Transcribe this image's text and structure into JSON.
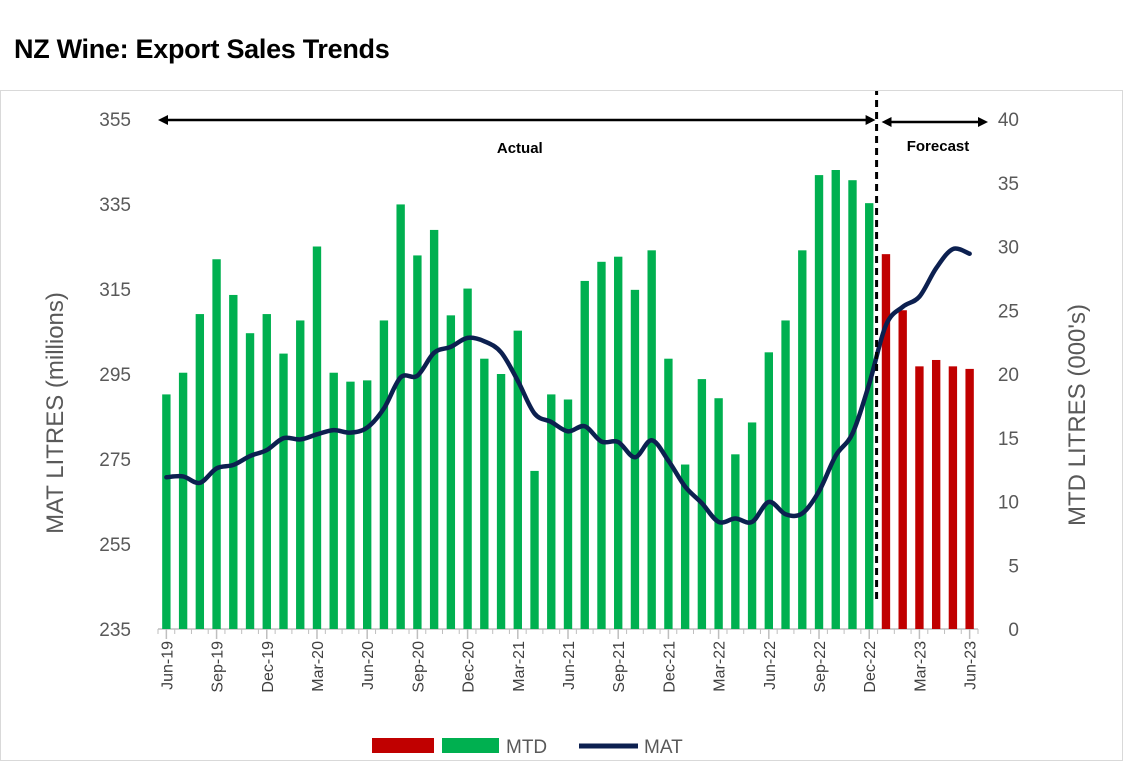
{
  "title": "NZ Wine: Export Sales Trends",
  "chart_data": {
    "type": "bar",
    "title": "NZ Wine: Export Sales Trends",
    "x": [
      "Jun-19",
      "Jul-19",
      "Aug-19",
      "Sep-19",
      "Oct-19",
      "Nov-19",
      "Dec-19",
      "Jan-20",
      "Feb-20",
      "Mar-20",
      "Apr-20",
      "May-20",
      "Jun-20",
      "Jul-20",
      "Aug-20",
      "Sep-20",
      "Oct-20",
      "Nov-20",
      "Dec-20",
      "Jan-21",
      "Feb-21",
      "Mar-21",
      "Apr-21",
      "May-21",
      "Jun-21",
      "Jul-21",
      "Aug-21",
      "Sep-21",
      "Oct-21",
      "Nov-21",
      "Dec-21",
      "Jan-22",
      "Feb-22",
      "Mar-22",
      "Apr-22",
      "May-22",
      "Jun-22",
      "Jul-22",
      "Aug-22",
      "Sep-22",
      "Oct-22",
      "Nov-22",
      "Dec-22",
      "Jan-23",
      "Feb-23",
      "Mar-23",
      "Apr-23",
      "May-23",
      "Jun-23"
    ],
    "x_tick_labels": [
      "Jun-19",
      "Sep-19",
      "Dec-19",
      "Mar-20",
      "Jun-20",
      "Sep-20",
      "Dec-20",
      "Mar-21",
      "Jun-21",
      "Sep-21",
      "Dec-21",
      "Mar-22",
      "Jun-22",
      "Sep-22",
      "Dec-22",
      "Mar-23",
      "Jun-23"
    ],
    "ylabel_left": "MAT LITRES (millions)",
    "ylabel_right": "MTD LITRES (000's)",
    "ylim_left": [
      235,
      355
    ],
    "ylim_right": [
      0,
      40
    ],
    "yticks_left": [
      235,
      255,
      275,
      295,
      315,
      335,
      355
    ],
    "yticks_right": [
      0,
      5,
      10,
      15,
      20,
      25,
      30,
      35,
      40
    ],
    "series": [
      {
        "name": "MTD",
        "type": "bar",
        "axis": "right",
        "colors": {
          "actual": "#00b050",
          "forecast": "#c00000"
        },
        "forecast_from_index": 43,
        "values": [
          18.4,
          20.1,
          24.7,
          29.0,
          26.2,
          23.2,
          24.7,
          21.6,
          24.2,
          30.0,
          20.1,
          19.4,
          19.5,
          24.2,
          33.3,
          29.3,
          31.3,
          24.6,
          26.7,
          21.2,
          20.0,
          23.4,
          12.4,
          18.4,
          18.0,
          27.3,
          28.8,
          29.2,
          26.6,
          29.7,
          21.2,
          12.9,
          19.6,
          18.1,
          13.7,
          16.2,
          21.7,
          24.2,
          29.7,
          35.6,
          36.0,
          35.2,
          33.4,
          29.4,
          25.0,
          20.6,
          21.1,
          20.6,
          20.4
        ]
      },
      {
        "name": "MAT",
        "type": "line",
        "axis": "left",
        "color": "#0c2050",
        "values": [
          270.7,
          270.9,
          269.4,
          272.8,
          273.6,
          275.7,
          277.1,
          279.9,
          279.6,
          280.8,
          281.8,
          281.2,
          282.4,
          286.9,
          294.2,
          294.6,
          300.0,
          301.4,
          303.5,
          302.7,
          300.1,
          293.4,
          285.7,
          283.7,
          281.5,
          282.7,
          279.1,
          279.0,
          275.4,
          279.4,
          274.6,
          268.5,
          264.6,
          260.2,
          261.0,
          260.2,
          264.9,
          262.0,
          262.2,
          267.4,
          275.8,
          281.0,
          292.7,
          306.5,
          310.8,
          313.2,
          319.9,
          324.4,
          323.3
        ]
      }
    ],
    "annotations": [
      {
        "text": "Actual"
      },
      {
        "text": "Forecast"
      }
    ],
    "legend": {
      "placement": "bottom",
      "entries": [
        "MTD",
        "MAT"
      ]
    },
    "grid": false
  }
}
